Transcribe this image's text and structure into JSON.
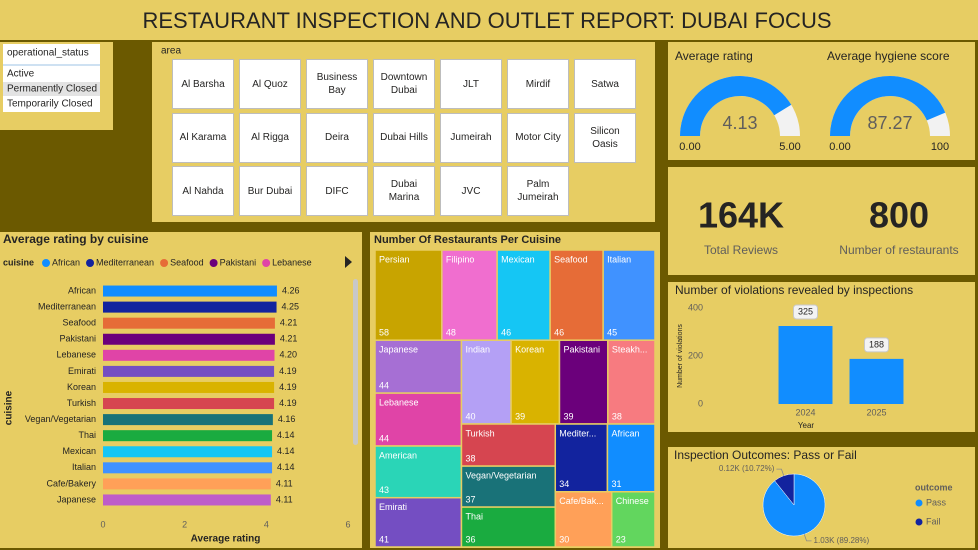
{
  "title": "RESTAURANT INSPECTION AND OUTLET REPORT: DUBAI FOCUS",
  "slicers": {
    "status": {
      "title": "operational_status",
      "items": [
        "Active",
        "Permanently Closed",
        "Temporarily Closed"
      ]
    },
    "area": {
      "title": "area",
      "items": [
        "Al Barsha",
        "Al Quoz",
        "Business Bay",
        "Downtown Dubai",
        "JLT",
        "Mirdif",
        "Satwa",
        "Al Karama",
        "Al Rigga",
        "Deira",
        "Dubai Hills",
        "Jumeirah",
        "Motor City",
        "Silicon Oasis",
        "Al Nahda",
        "Bur Dubai",
        "DIFC",
        "Dubai Marina",
        "JVC",
        "Palm Jumeirah"
      ]
    }
  },
  "kpis": [
    {
      "value": "164K",
      "label": "Total Reviews"
    },
    {
      "value": "800",
      "label": "Number of restaurants"
    }
  ],
  "chart_data": [
    {
      "type": "gauge",
      "title": "Average rating",
      "value": 4.13,
      "color": "#118dff",
      "ylim": [
        0,
        5
      ],
      "yticks": [
        {
          "value": 0,
          "label": "0.00"
        },
        {
          "value": 5,
          "label": "5.00"
        }
      ]
    },
    {
      "type": "gauge",
      "title": "Average hygiene score",
      "value": 87.27,
      "color": "#118dff",
      "ylim": [
        0,
        100
      ],
      "yticks": [
        {
          "value": 0,
          "label": "0.00"
        },
        100
      ]
    },
    {
      "type": "bar",
      "orientation": "horizontal",
      "title": "Average rating by cuisine",
      "legend_title": "cuisine",
      "legend": [
        "African",
        "Mediterranean",
        "Seafood",
        "Pakistani",
        "Lebanese"
      ],
      "categories": [
        "African",
        "Mediterranean",
        "Seafood",
        "Pakistani",
        "Lebanese",
        "Emirati",
        "Korean",
        "Turkish",
        "Vegan/Vegetarian",
        "Thai",
        "Mexican",
        "Italian",
        "Cafe/Bakery",
        "Japanese"
      ],
      "values": [
        4.26,
        4.25,
        4.21,
        4.21,
        4.2,
        4.19,
        4.19,
        4.19,
        4.16,
        4.14,
        4.14,
        4.14,
        4.11,
        4.11
      ],
      "value_labels": [
        "4.26",
        "4.25",
        "4.21",
        "4.21",
        "4.20",
        "4.19",
        "4.19",
        "4.19",
        "4.16",
        "4.14",
        "4.14",
        "4.14",
        "4.11",
        "4.11"
      ],
      "colors": [
        "#118dff",
        "#12239e",
        "#e66c37",
        "#6b007b",
        "#e044a7",
        "#744ec2",
        "#d9b300",
        "#d64550",
        "#197278",
        "#1aab40",
        "#15c6f4",
        "#4092ff",
        "#ffa058",
        "#be5dc9"
      ],
      "xlabel": "Average rating",
      "ylabel": "cuisine",
      "xlim": [
        0,
        6
      ],
      "xticks": [
        0,
        2,
        4,
        6
      ]
    },
    {
      "type": "treemap",
      "title": "Number Of Restaurants Per Cuisine",
      "categories": [
        "Persian",
        "Filipino",
        "Mexican",
        "Seafood",
        "Italian",
        "Japanese",
        "Lebanese",
        "American",
        "Emirati",
        "Indian",
        "Korean",
        "Pakistani",
        "Steakh...",
        "Turkish",
        "Vegan/Vegetarian",
        "Thai",
        "Mediter...",
        "African",
        "Cafe/Bak...",
        "Chinese"
      ],
      "values": [
        58,
        48,
        46,
        46,
        45,
        44,
        44,
        43,
        41,
        40,
        39,
        39,
        38,
        38,
        37,
        36,
        34,
        31,
        30,
        23
      ],
      "colors": [
        "#c8a400",
        "#f06ecf",
        "#15c6f4",
        "#e66c37",
        "#4092ff",
        "#a66fd4",
        "#e044a7",
        "#2ad5b7",
        "#744ec2",
        "#b4a0f5",
        "#d9b300",
        "#6b007b",
        "#f77b80",
        "#d64550",
        "#197278",
        "#1aab40",
        "#12239e",
        "#118dff",
        "#ffa058",
        "#62d65e"
      ]
    },
    {
      "type": "bar",
      "orientation": "vertical",
      "title": "Number of violations revealed by inspections",
      "categories": [
        "2024",
        "2025"
      ],
      "values": [
        325,
        188
      ],
      "color": "#118dff",
      "xlabel": "Year",
      "ylabel": "Number of violations",
      "ylim": [
        0,
        400
      ],
      "yticks": [
        0,
        200,
        400
      ]
    },
    {
      "type": "pie",
      "title": "Inspection Outcomes: Pass or Fail",
      "legend_title": "outcome",
      "categories": [
        "Pass",
        "Fail"
      ],
      "values": [
        89.28,
        10.72
      ],
      "value_labels": [
        "1.03K (89.28%)",
        "0.12K (10.72%)"
      ],
      "colors": [
        "#118dff",
        "#12239e"
      ]
    }
  ]
}
